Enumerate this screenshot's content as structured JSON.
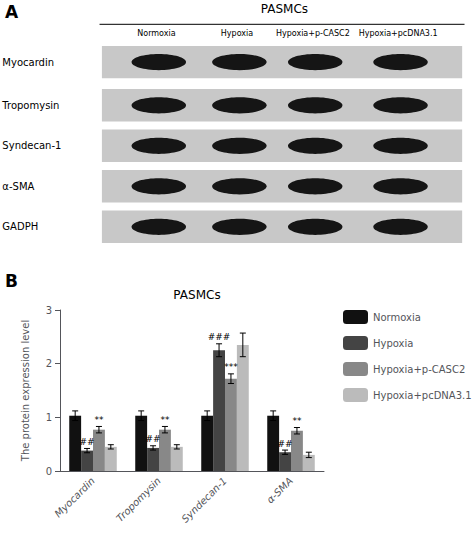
{
  "chart_data": [
    {
      "type": "blot",
      "title": "PASMCs",
      "categories": [
        "Normoxia",
        "Hypoxia",
        "Hypoxia+p-CASC2",
        "Hypoxia+pcDNA3.1"
      ],
      "rows": [
        "Myocardin",
        "Tropomysin",
        "Syndecan-1",
        "α-SMA",
        "GADPH"
      ],
      "annotations": [
        {
          "text": "A"
        }
      ]
    },
    {
      "type": "bar",
      "title": "PASMCs",
      "categories": [
        "Myocardin",
        "Tropomysin",
        "Syndecan-1",
        "α-SMA"
      ],
      "series": [
        {
          "name": "Normoxia",
          "color": "#111111",
          "values": [
            1.03,
            1.03,
            1.03,
            1.03
          ],
          "errors": [
            0.09,
            0.09,
            0.09,
            0.09
          ]
        },
        {
          "name": "Hypoxia",
          "color": "#444444",
          "values": [
            0.38,
            0.43,
            2.25,
            0.35
          ],
          "errors": [
            0.04,
            0.04,
            0.12,
            0.04
          ]
        },
        {
          "name": "Hypoxia+p-CASC2",
          "color": "#888888",
          "values": [
            0.77,
            0.77,
            1.72,
            0.75
          ],
          "errors": [
            0.06,
            0.06,
            0.09,
            0.06
          ]
        },
        {
          "name": "Hypoxia+pcDNA3.1",
          "color": "#bbbbbb",
          "values": [
            0.45,
            0.45,
            2.35,
            0.3
          ],
          "errors": [
            0.04,
            0.04,
            0.22,
            0.05
          ]
        }
      ],
      "ylabel": "The protein expression level",
      "ylim": [
        0,
        3
      ],
      "yticks": [
        0,
        1,
        2,
        3
      ],
      "grid": false,
      "legend": "right",
      "annotations": [
        {
          "text": "B"
        },
        {
          "category": "Myocardin",
          "series": "Hypoxia",
          "text": "##"
        },
        {
          "category": "Myocardin",
          "series": "Hypoxia+p-CASC2",
          "text": "**"
        },
        {
          "category": "Tropomysin",
          "series": "Hypoxia",
          "text": "##"
        },
        {
          "category": "Tropomysin",
          "series": "Hypoxia+p-CASC2",
          "text": "**"
        },
        {
          "category": "Syndecan-1",
          "series": "Hypoxia",
          "text": "###"
        },
        {
          "category": "Syndecan-1",
          "series": "Hypoxia+p-CASC2",
          "text": "***"
        },
        {
          "category": "α-SMA",
          "series": "Hypoxia",
          "text": "##"
        },
        {
          "category": "α-SMA",
          "series": "Hypoxia+p-CASC2",
          "text": "**"
        }
      ]
    }
  ]
}
